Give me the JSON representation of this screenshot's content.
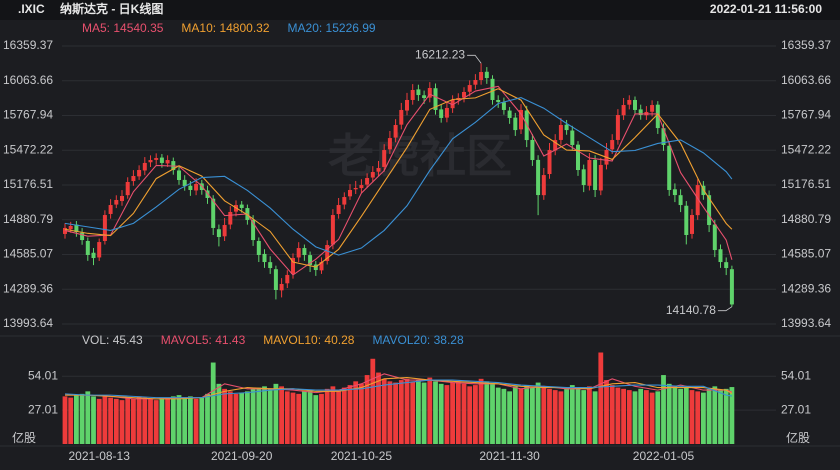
{
  "chart_data": {
    "type": "candlestick",
    "symbol": ".IXIC",
    "title": "纳斯达克 - 日K线图",
    "timestamp": "2022-01-21 11:56:00",
    "watermark": "老虎社区",
    "up_color": "#ee3b3b",
    "down_color": "#5fd36b",
    "categories": [
      null,
      null,
      null,
      null,
      null,
      null,
      "2021-08-13",
      null,
      null,
      null,
      null,
      null,
      null,
      null,
      null,
      null,
      null,
      null,
      null,
      null,
      null,
      null,
      null,
      null,
      null,
      null,
      null,
      null,
      null,
      null,
      null,
      "2021-09-20",
      null,
      null,
      null,
      null,
      null,
      null,
      null,
      null,
      null,
      null,
      null,
      null,
      null,
      null,
      null,
      null,
      null,
      null,
      null,
      null,
      "2021-10-25",
      null,
      null,
      null,
      null,
      null,
      null,
      null,
      null,
      null,
      null,
      null,
      null,
      null,
      null,
      null,
      null,
      null,
      null,
      null,
      null,
      null,
      null,
      null,
      null,
      null,
      "2021-11-30",
      null,
      null,
      null,
      null,
      null,
      null,
      null,
      null,
      null,
      null,
      null,
      null,
      null,
      null,
      null,
      null,
      null,
      null,
      null,
      null,
      null,
      null,
      null,
      null,
      null,
      null,
      "2022-01-05",
      null,
      null,
      null,
      null,
      null,
      null,
      null,
      null,
      null,
      null,
      null,
      null
    ],
    "open": [
      14760,
      14800,
      14840,
      14770,
      14700,
      14600,
      14560,
      14700,
      14930,
      15010,
      15040,
      15090,
      15210,
      15250,
      15300,
      15370,
      15390,
      15410,
      15360,
      15380,
      15300,
      15220,
      15170,
      15130,
      15190,
      15130,
      15060,
      14800,
      14740,
      14840,
      14950,
      15010,
      14980,
      14880,
      14700,
      14590,
      14520,
      14460,
      14280,
      14340,
      14420,
      14560,
      14640,
      14580,
      14500,
      14450,
      14530,
      14670,
      14930,
      15010,
      15080,
      15140,
      15150,
      15180,
      15240,
      15290,
      15330,
      15480,
      15580,
      15690,
      15810,
      15900,
      15990,
      15940,
      15920,
      16000,
      15820,
      15750,
      15830,
      15900,
      15920,
      15970,
      16030,
      16070,
      16140,
      16080,
      15900,
      15880,
      15810,
      15750,
      15650,
      15810,
      15560,
      15390,
      15090,
      15270,
      15470,
      15560,
      15690,
      15640,
      15520,
      15310,
      15170,
      15390,
      15130,
      15350,
      15480,
      15560,
      15770,
      15860,
      15900,
      15820,
      15770,
      15800,
      15860,
      15660,
      15510,
      15140,
      15090,
      15000,
      14760,
      14920,
      15170,
      15090,
      14840,
      14630,
      14520,
      14460
    ],
    "high": [
      14851,
      14863,
      14870,
      14810,
      14730,
      14640,
      14721,
      14961,
      15056,
      15089,
      15133,
      15242,
      15303,
      15344,
      15414,
      15429,
      15446,
      15440,
      15429,
      15410,
      15330,
      15260,
      15210,
      15235,
      15220,
      15170,
      15090,
      14840,
      14896,
      14997,
      15046,
      15040,
      15010,
      14920,
      14730,
      14630,
      14570,
      14490,
      14384,
      14451,
      14595,
      14690,
      14670,
      14610,
      14530,
      14561,
      14706,
      14971,
      15066,
      15114,
      15184,
      15211,
      15226,
      15276,
      15337,
      15381,
      15524,
      15636,
      15737,
      15875,
      15960,
      16035,
      16030,
      15980,
      16052,
      16040,
      15860,
      15882,
      15940,
      15957,
      16008,
      16067,
      16120,
      16212.23,
      16180,
      16110,
      15940,
      15920,
      15840,
      15790,
      15865,
      15850,
      15610,
      15430,
      15321,
      15534,
      15609,
      15747,
      15730,
      15680,
      15550,
      15350,
      15449,
      15430,
      15407,
      15534,
      15609,
      15822,
      15917,
      15940,
      15930,
      15860,
      15848,
      15897,
      15890,
      15700,
      15550,
      15190,
      15140,
      15040,
      14971,
      15226,
      15210,
      15130,
      14880,
      14670,
      14560,
      14490
    ],
    "low": [
      14720,
      14770,
      14736,
      14668,
      14531,
      14495,
      14530,
      14670,
      14890,
      14980,
      15000,
      15060,
      15170,
      15220,
      15260,
      15330,
      15350,
      15324,
      15330,
      15264,
      15179,
      15128,
      15084,
      15090,
      15094,
      15016,
      14751,
      14654,
      14700,
      14800,
      14910,
      14941,
      14839,
      14658,
      14521,
      14471,
      14420,
      14203,
      14220,
      14300,
      14380,
      14520,
      14531,
      14436,
      14403,
      14420,
      14500,
      14630,
      14890,
      14970,
      15050,
      15100,
      15110,
      15150,
      15200,
      15250,
      15290,
      15440,
      15540,
      15650,
      15770,
      15860,
      15892,
      15867,
      15880,
      15775,
      15707,
      15710,
      15790,
      15860,
      15880,
      15930,
      15990,
      16030,
      16037,
      15860,
      15833,
      15775,
      15697,
      15594,
      15610,
      15499,
      15339,
      14920,
      15050,
      15230,
      15430,
      15520,
      15604,
      15477,
      15254,
      15116,
      15130,
      15074,
      15090,
      15310,
      15440,
      15520,
      15730,
      15820,
      15775,
      15732,
      15730,
      15760,
      15611,
      15467,
      15084,
      15031,
      14946,
      14671,
      14720,
      14880,
      15051,
      14776,
      14563,
      14471,
      14410,
      14140.78
    ],
    "close": [
      14811,
      14828,
      14776,
      14708,
      14581,
      14555,
      14691,
      14921,
      15006,
      15049,
      15083,
      15202,
      15253,
      15304,
      15364,
      15389,
      15406,
      15364,
      15389,
      15304,
      15219,
      15168,
      15134,
      15185,
      15134,
      15066,
      14811,
      14734,
      14836,
      14947,
      15006,
      14981,
      14879,
      14708,
      14581,
      14521,
      14470,
      14283,
      14334,
      14411,
      14555,
      14640,
      14581,
      14496,
      14453,
      14521,
      14666,
      14921,
      15006,
      15074,
      15134,
      15151,
      15176,
      15236,
      15287,
      15321,
      15474,
      15576,
      15687,
      15815,
      15900,
      15985,
      15942,
      15917,
      16002,
      15815,
      15747,
      15832,
      15900,
      15917,
      15968,
      16027,
      16070,
      16138,
      16087,
      15900,
      15883,
      15815,
      15747,
      15644,
      15815,
      15559,
      15389,
      15091,
      15261,
      15474,
      15559,
      15687,
      15644,
      15517,
      15304,
      15176,
      15389,
      15134,
      15347,
      15474,
      15559,
      15772,
      15857,
      15900,
      15815,
      15772,
      15798,
      15857,
      15661,
      15517,
      15134,
      15091,
      15006,
      14751,
      14921,
      15176,
      15091,
      14836,
      14623,
      14521,
      14470,
      14160
    ],
    "ylim": [
      13993.64,
      16359.37
    ],
    "yticks": [
      16359.37,
      16063.66,
      15767.94,
      15472.22,
      15176.51,
      14880.79,
      14585.07,
      14289.36,
      13993.64
    ],
    "grid": true,
    "ma_series": [
      {
        "name": "MA5:",
        "color": "#e8506e",
        "x": [
          0,
          4,
          8,
          12,
          16,
          20,
          24,
          28,
          32,
          36,
          40,
          44,
          48,
          52,
          56,
          60,
          64,
          68,
          72,
          76,
          80,
          84,
          88,
          92,
          96,
          100,
          104,
          108,
          112,
          116,
          117
        ],
        "values": [
          14790,
          14741,
          14751,
          15119,
          15343,
          15336,
          15168,
          14916,
          14930,
          14632,
          14411,
          14545,
          14713,
          15108,
          15299,
          15690,
          15949,
          15859,
          15976,
          16016,
          15781,
          15423,
          15525,
          15406,
          15381,
          15781,
          15781,
          15282,
          14989,
          14708,
          14540.35
        ]
      },
      {
        "name": "MA10:",
        "color": "#f0a030",
        "x": [
          0,
          4,
          8,
          12,
          16,
          20,
          24,
          28,
          32,
          36,
          40,
          44,
          48,
          52,
          56,
          60,
          64,
          68,
          72,
          76,
          80,
          84,
          88,
          92,
          96,
          100,
          104,
          108,
          112,
          116,
          117
        ],
        "values": [
          14800,
          14765,
          14746,
          14935,
          15231,
          15340,
          15252,
          15042,
          14923,
          14781,
          14521,
          14478,
          14629,
          14910,
          15203,
          15495,
          15820,
          15904,
          15918,
          15996,
          15899,
          15602,
          15474,
          15466,
          15394,
          15581,
          15781,
          15532,
          15136,
          14849,
          14800.32
        ]
      },
      {
        "name": "MA20:",
        "color": "#3a90d4",
        "x": [
          0,
          4,
          8,
          12,
          16,
          20,
          24,
          28,
          32,
          36,
          40,
          44,
          48,
          52,
          56,
          60,
          64,
          68,
          72,
          76,
          80,
          84,
          88,
          92,
          96,
          100,
          104,
          108,
          112,
          116,
          117
        ],
        "values": [
          14850,
          14820,
          14790,
          14850,
          14990,
          15140,
          15240,
          15250,
          15130,
          14980,
          14800,
          14650,
          14580,
          14640,
          14790,
          15000,
          15300,
          15570,
          15710,
          15870,
          15920,
          15830,
          15700,
          15580,
          15460,
          15470,
          15530,
          15560,
          15450,
          15290,
          15226.99
        ]
      }
    ],
    "volume": {
      "name": "VOL:",
      "unit": "亿股",
      "values": [
        38,
        37,
        39,
        40,
        42,
        38,
        36,
        39,
        37,
        36,
        35,
        37,
        36,
        38,
        37,
        36,
        35,
        37,
        36,
        38,
        39,
        37,
        38,
        36,
        37,
        40,
        65,
        48,
        44,
        42,
        40,
        41,
        42,
        44,
        45,
        46,
        44,
        48,
        46,
        42,
        41,
        40,
        42,
        43,
        39,
        40,
        44,
        46,
        43,
        45,
        47,
        50,
        48,
        55,
        68,
        57,
        52,
        50,
        49,
        51,
        52,
        50,
        51,
        49,
        53,
        50,
        48,
        47,
        49,
        50,
        48,
        46,
        47,
        52,
        50,
        48,
        45,
        44,
        42,
        46,
        44,
        47,
        45,
        49,
        46,
        44,
        43,
        42,
        45,
        47,
        44,
        43,
        46,
        42,
        73,
        51,
        47,
        45,
        44,
        43,
        42,
        44,
        43,
        41,
        42,
        55,
        48,
        46,
        44,
        45,
        43,
        42,
        41,
        44,
        46,
        43,
        44,
        45.43
      ],
      "ylim": [
        0,
        75
      ],
      "yticks": [
        54.01,
        27.01
      ],
      "ma_series": [
        {
          "name": "MAVOL5:",
          "color": "#e8506e",
          "x": [
            0,
            4,
            8,
            12,
            16,
            20,
            24,
            28,
            32,
            36,
            40,
            44,
            48,
            52,
            56,
            60,
            64,
            68,
            72,
            76,
            80,
            84,
            88,
            92,
            96,
            100,
            104,
            108,
            112,
            116,
            117
          ],
          "values": [
            39,
            39,
            38,
            36,
            36,
            37,
            37,
            48,
            44,
            44,
            43,
            41,
            43,
            48,
            56,
            51,
            51,
            49,
            48,
            48,
            44,
            46,
            44,
            44,
            52,
            46,
            43,
            47,
            43,
            43,
            41.43
          ]
        },
        {
          "name": "MAVOL10:",
          "color": "#f0a030",
          "x": [
            0,
            4,
            8,
            12,
            16,
            20,
            24,
            28,
            32,
            36,
            40,
            44,
            48,
            52,
            56,
            60,
            64,
            68,
            72,
            76,
            80,
            84,
            88,
            92,
            96,
            100,
            104,
            108,
            112,
            116,
            117
          ],
          "values": [
            39,
            39,
            38,
            37,
            36,
            36,
            37,
            42,
            45,
            44,
            44,
            42,
            42,
            45,
            52,
            53,
            51,
            50,
            49,
            48,
            46,
            45,
            45,
            44,
            48,
            49,
            45,
            45,
            45,
            43,
            40.28
          ]
        },
        {
          "name": "MAVOL20:",
          "color": "#3a90d4",
          "x": [
            0,
            4,
            8,
            12,
            16,
            20,
            24,
            28,
            32,
            36,
            40,
            44,
            48,
            52,
            56,
            60,
            64,
            68,
            72,
            76,
            80,
            84,
            88,
            92,
            96,
            100,
            104,
            108,
            112,
            116,
            117
          ],
          "values": [
            40,
            39,
            39,
            38,
            37,
            37,
            37,
            40,
            41,
            43,
            44,
            43,
            43,
            44,
            47,
            49,
            51,
            51,
            50,
            49,
            47,
            46,
            45,
            45,
            46,
            47,
            47,
            46,
            46,
            39,
            38.28
          ]
        }
      ]
    }
  }
}
